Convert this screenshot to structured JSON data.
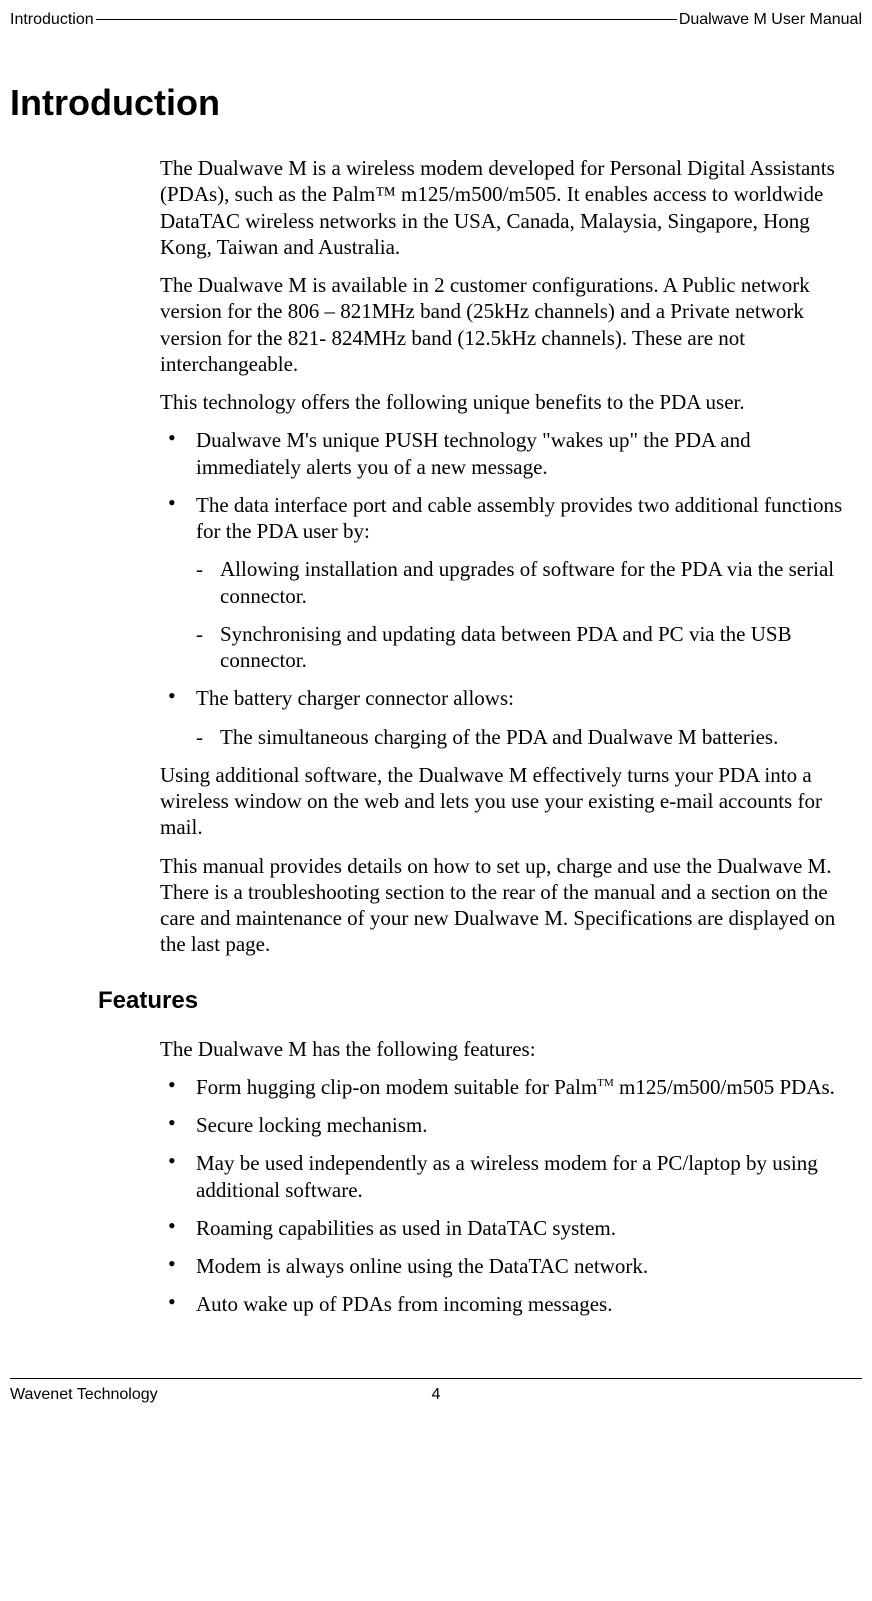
{
  "header": {
    "left": "Introduction",
    "right": "Dualwave M User Manual"
  },
  "title": "Introduction",
  "intro": {
    "p1": "The Dualwave M is a wireless modem developed for Personal Digital Assistants (PDAs), such as the Palm™ m125/m500/m505. It enables access to worldwide DataTAC wireless networks in the USA, Canada, Malaysia, Singapore, Hong Kong, Taiwan and Australia.",
    "p2": "The Dualwave M is available in 2 customer configurations. A Public network version for the 806 – 821MHz band (25kHz channels) and a Private network version for the 821- 824MHz band (12.5kHz channels). These are not interchangeable.",
    "p3": "This technology offers the following unique benefits to the PDA user.",
    "bullets": [
      {
        "text": "Dualwave M's unique PUSH technology \"wakes up\" the PDA and immediately alerts you of a new message."
      },
      {
        "text": "The data interface port and cable assembly provides two additional functions for the PDA user by:",
        "sub": [
          "Allowing installation and upgrades of software for the PDA via the serial connector.",
          "Synchronising and updating data between PDA and PC via the USB connector."
        ]
      },
      {
        "text": "The battery charger connector allows:",
        "sub": [
          "The simultaneous charging of the PDA and Dualwave M batteries."
        ]
      }
    ],
    "p4": "Using additional software, the Dualwave M effectively turns your PDA into a wireless window on the web and lets you use your existing e-mail accounts for mail.",
    "p5": "This manual provides details on how to set up, charge and use the Dualwave M. There is a troubleshooting section to the rear of the manual and a section on the care and maintenance of your new Dualwave M. Specifications are displayed on the last page."
  },
  "features": {
    "heading": "Features",
    "lead": "The Dualwave M has the following features:",
    "items": [
      {
        "pre": "Form hugging clip-on modem suitable for Palm",
        "sup": "TM",
        "post": " m125/m500/m505 PDAs."
      },
      {
        "pre": "Secure locking mechanism.",
        "sup": "",
        "post": ""
      },
      {
        "pre": "May be used independently as a wireless modem for a PC/laptop by using additional software.",
        "sup": "",
        "post": ""
      },
      {
        "pre": "Roaming capabilities as used in DataTAC system.",
        "sup": "",
        "post": ""
      },
      {
        "pre": "Modem is always online using the DataTAC network.",
        "sup": "",
        "post": ""
      },
      {
        "pre": "Auto wake up of PDAs from incoming messages.",
        "sup": "",
        "post": ""
      }
    ]
  },
  "footer": {
    "company": "Wavenet Technology",
    "page": "4"
  }
}
